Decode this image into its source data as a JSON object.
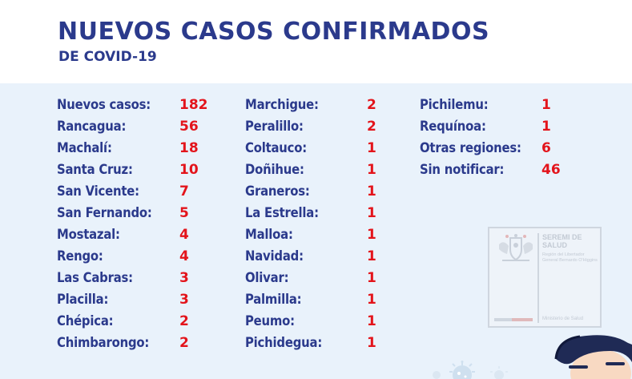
{
  "header": {
    "title": "NUEVOS CASOS CONFIRMADOS",
    "subtitle": "DE COVID-19"
  },
  "columns": [
    [
      {
        "name": "Nuevos casos:",
        "value": "182"
      },
      {
        "name": "Rancagua:",
        "value": "56"
      },
      {
        "name": "Machalí:",
        "value": "18"
      },
      {
        "name": "Santa Cruz:",
        "value": "10"
      },
      {
        "name": "San Vicente:",
        "value": "7"
      },
      {
        "name": "San Fernando:",
        "value": "5"
      },
      {
        "name": "Mostazal:",
        "value": "4"
      },
      {
        "name": "Rengo:",
        "value": "4"
      },
      {
        "name": "Las Cabras:",
        "value": "3"
      },
      {
        "name": "Placilla:",
        "value": "3"
      },
      {
        "name": "Chépica:",
        "value": "2"
      },
      {
        "name": "Chimbarongo:",
        "value": "2"
      }
    ],
    [
      {
        "name": "Marchigue:",
        "value": "2"
      },
      {
        "name": "Peralillo:",
        "value": "2"
      },
      {
        "name": "Coltauco:",
        "value": "1"
      },
      {
        "name": "Doñihue:",
        "value": "1"
      },
      {
        "name": "Graneros:",
        "value": "1"
      },
      {
        "name": "La Estrella:",
        "value": "1"
      },
      {
        "name": "Malloa:",
        "value": "1"
      },
      {
        "name": "Navidad:",
        "value": "1"
      },
      {
        "name": "Olivar:",
        "value": "1"
      },
      {
        "name": "Palmilla:",
        "value": "1"
      },
      {
        "name": "Peumo:",
        "value": "1"
      },
      {
        "name": "Pichidegua:",
        "value": "1"
      }
    ],
    [
      {
        "name": "Pichilemu:",
        "value": "1"
      },
      {
        "name": "Requínoa:",
        "value": "1"
      },
      {
        "name": "Otras regiones:",
        "value": "6"
      },
      {
        "name": "Sin notificar:",
        "value": "46"
      }
    ]
  ],
  "seal": {
    "title": "SEREMI DE SALUD",
    "subtitle": "Región del Libertador General Bernardo O'Higgins",
    "footer": "Ministerio de Salud"
  },
  "colors": {
    "title": "#2b3a8c",
    "value": "#e3141b",
    "panel_bg": "#e9f2fb"
  },
  "icons": [
    "chile-coat-of-arms-icon",
    "character-illustration",
    "virus-icon"
  ]
}
